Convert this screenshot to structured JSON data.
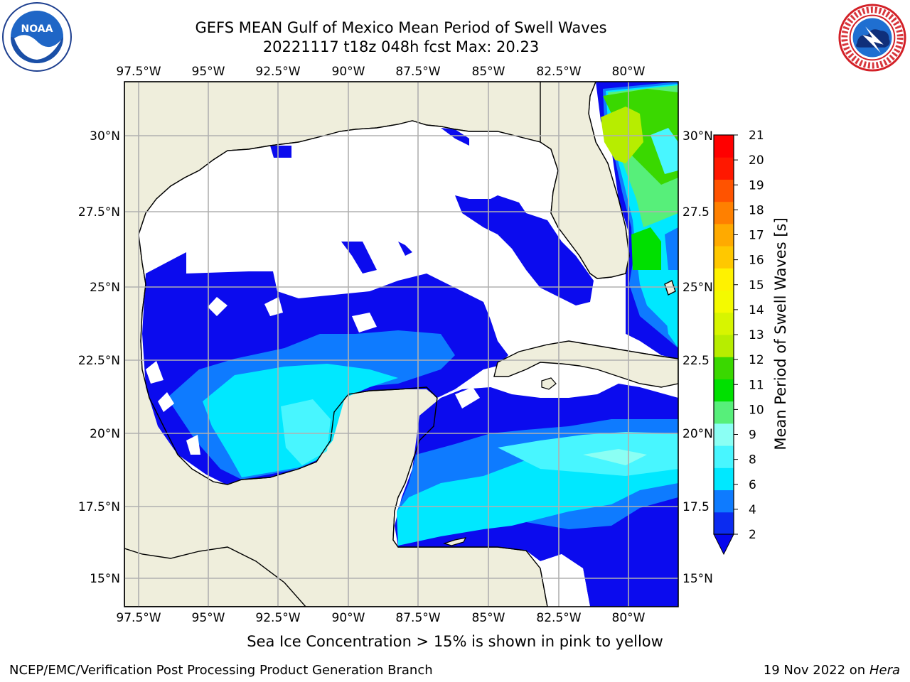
{
  "header": {
    "title_line1": "GEFS MEAN Gulf of Mexico Mean Period of Swell Waves",
    "title_line2": "20221117 t18z 048h fcst   Max: 20.23"
  },
  "logos": {
    "left": {
      "icon": "noaa-logo",
      "text": "NOAA"
    },
    "right": {
      "icon": "nws-logo",
      "text": "NATIONAL WEATHER SERVICE"
    }
  },
  "map": {
    "lon_ticks": [
      "97.5°W",
      "95°W",
      "92.5°W",
      "90°W",
      "87.5°W",
      "85°W",
      "82.5°W",
      "80°W"
    ],
    "lat_ticks_left": [
      "30°N",
      "27.5°N",
      "25°N",
      "22.5°N",
      "20°N",
      "17.5°N",
      "15°N"
    ],
    "lat_ticks_right": [
      "30°N",
      "27.5",
      "25°N",
      "22.5",
      "20°N",
      "17.5",
      "15°N"
    ],
    "colors": {
      "land": "#efeedc",
      "grid": "#b0b0b0",
      "coast": "#000000"
    }
  },
  "colorbar": {
    "label": "Mean Period of Swell Waves [s]",
    "ticks": [
      "2",
      "4",
      "6",
      "8",
      "9",
      "10",
      "11",
      "12",
      "13",
      "14",
      "15",
      "16",
      "17",
      "18",
      "19",
      "20",
      "21"
    ],
    "colors": [
      "#0b2bf0",
      "#0e7bff",
      "#00e8ff",
      "#48f6ff",
      "#8bfff4",
      "#57ef7a",
      "#00e000",
      "#3ad800",
      "#b7ed00",
      "#d7f500",
      "#f4fa00",
      "#fff200",
      "#ffc800",
      "#ffaa00",
      "#ff8000",
      "#ff5300",
      "#ff1800",
      "#ff0000"
    ],
    "under_color": "#0505ee"
  },
  "footer": {
    "ice_note": "Sea Ice Concentration > 15% is shown in pink to yellow",
    "credit": "NCEP/EMC/Verification Post Processing Product Generation Branch",
    "date": "19 Nov 2022 on",
    "machine": "Hera"
  }
}
